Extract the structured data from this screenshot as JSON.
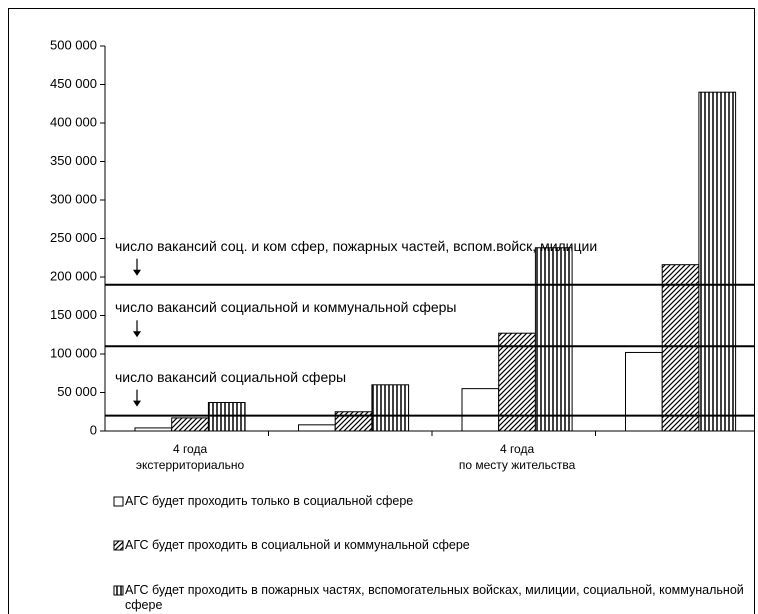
{
  "chart_data": {
    "type": "bar",
    "categories": [
      "4 года\nэкстерриториально",
      null,
      "4 года\nпо месту жительства",
      null
    ],
    "series": [
      {
        "name": "АГС будет проходить только в социальной сфере",
        "color": "#ffffff",
        "pattern": "none",
        "values": [
          4000,
          8000,
          55000,
          102000
        ]
      },
      {
        "name": "АГС будет проходить в социальной и коммунальной сфере",
        "color": "#ffffff",
        "pattern": "diagonal",
        "values": [
          17000,
          25000,
          127000,
          216000
        ]
      },
      {
        "name": "АГС будет проходить в пожарных частях, вспомогательных войсках, милиции, социальной, коммунальной сфере",
        "color": "#ffffff",
        "pattern": "vertical",
        "values": [
          37000,
          60000,
          238000,
          440000
        ]
      }
    ],
    "ylim": [
      0,
      500000
    ],
    "yticks": [
      {
        "value": 0,
        "label": "0"
      },
      {
        "value": 50000,
        "label": "50 000"
      },
      {
        "value": 100000,
        "label": "100 000"
      },
      {
        "value": 150000,
        "label": "150 000"
      },
      {
        "value": 200000,
        "label": "200 000"
      },
      {
        "value": 250000,
        "label": "250 000"
      },
      {
        "value": 300000,
        "label": "300 000"
      },
      {
        "value": 350000,
        "label": "350 000"
      },
      {
        "value": 400000,
        "label": "400 000"
      },
      {
        "value": 450000,
        "label": "450 000"
      },
      {
        "value": 500000,
        "label": "500 000"
      }
    ],
    "grid": false,
    "legend": "bottom",
    "annotations": [
      {
        "text": "число вакансий соц. и ком сфер, пожарных частей, вспом.войск, милиции",
        "value": 190000
      },
      {
        "text": "число вакансий социальной и коммунальной сферы",
        "value": 110000
      },
      {
        "text": "число вакансий социальной сферы",
        "value": 20000
      }
    ]
  }
}
